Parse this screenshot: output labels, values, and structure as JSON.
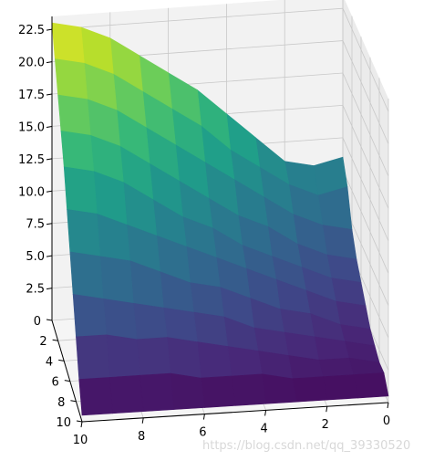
{
  "chart_data": {
    "type": "surface3d",
    "title": "",
    "xlabel": "",
    "ylabel": "",
    "zlabel": "",
    "x_axis": {
      "range": [
        0,
        10
      ],
      "ticks": [
        0,
        2,
        4,
        6,
        8,
        10
      ]
    },
    "y_axis": {
      "range": [
        0,
        10
      ],
      "ticks": [
        0,
        2,
        4,
        6,
        8,
        10
      ]
    },
    "z_axis": {
      "range": [
        0,
        23.5
      ],
      "ticks": [
        2.5,
        5.0,
        7.5,
        10.0,
        12.5,
        15.0,
        17.5,
        20.0,
        22.5
      ]
    },
    "x_tick_labels": [
      "0",
      "2",
      "4",
      "6",
      "8",
      "10"
    ],
    "y_tick_labels": [
      "10",
      "8",
      "6",
      "4",
      "2",
      "0"
    ],
    "z_tick_labels": [
      "2.5",
      "5.0",
      "7.5",
      "10.0",
      "12.5",
      "15.0",
      "17.5",
      "20.0",
      "22.5"
    ],
    "colormap": "viridis",
    "grid": true,
    "panes": "light-grey",
    "surface_note": "approximate heights; z rises toward x=0, y=0 corner",
    "z_grid": [
      [
        23.0,
        22.5,
        21.5,
        20.0,
        18.5,
        17.0,
        15.0,
        13.0,
        11.0,
        10.5,
        11.0
      ],
      [
        21.0,
        20.5,
        19.5,
        18.0,
        16.5,
        15.0,
        13.0,
        11.5,
        10.0,
        9.0,
        9.5
      ],
      [
        19.0,
        18.5,
        17.5,
        16.0,
        14.5,
        13.0,
        11.5,
        10.0,
        8.5,
        7.5,
        7.0
      ],
      [
        17.0,
        16.5,
        15.5,
        14.0,
        12.5,
        11.0,
        9.5,
        8.5,
        7.0,
        6.0,
        5.5
      ],
      [
        15.0,
        14.5,
        13.5,
        12.0,
        10.5,
        9.5,
        8.0,
        7.0,
        6.0,
        5.0,
        4.5
      ],
      [
        12.5,
        12.0,
        11.0,
        10.0,
        9.0,
        8.0,
        7.0,
        6.0,
        5.0,
        4.0,
        3.5
      ],
      [
        10.0,
        9.5,
        9.0,
        8.0,
        7.0,
        6.5,
        5.5,
        4.5,
        4.0,
        3.0,
        2.5
      ],
      [
        7.5,
        7.0,
        6.5,
        6.0,
        5.5,
        5.0,
        4.0,
        3.5,
        3.0,
        2.5,
        2.0
      ],
      [
        5.0,
        5.0,
        4.5,
        4.5,
        4.0,
        3.5,
        3.0,
        2.5,
        2.0,
        2.0,
        1.5
      ],
      [
        2.5,
        2.5,
        2.5,
        2.5,
        2.0,
        2.0,
        2.0,
        1.5,
        1.5,
        1.5,
        1.5
      ],
      [
        0.5,
        0.5,
        0.5,
        0.5,
        0.5,
        0.5,
        0.5,
        0.5,
        0.5,
        0.5,
        0.5
      ]
    ]
  },
  "watermark": "https://blog.csdn.net/qq_39330520",
  "colors": {
    "pane_left": "#f2f2f2",
    "pane_right": "#ebebeb",
    "pane_bottom": "#f5f5f5",
    "grid": "#c8c8c8",
    "axis": "#000000"
  }
}
